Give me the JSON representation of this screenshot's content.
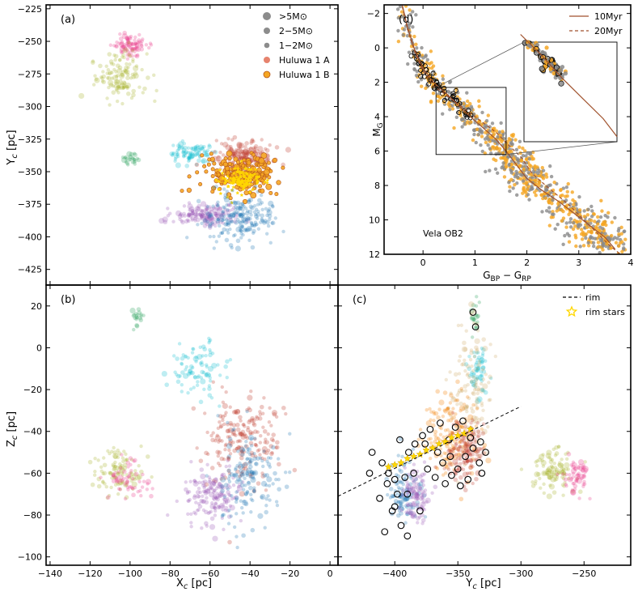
{
  "chart_data": [
    {
      "id": "a",
      "type": "scatter",
      "panel_label": "(a)",
      "xlabel": "",
      "ylabel": "Y_c [pc]",
      "xlim": [
        -142,
        4
      ],
      "ylim": [
        -437,
        -222
      ],
      "xticks": [
        -140,
        -120,
        -100,
        -80,
        -60,
        -40,
        -20,
        0
      ],
      "yticks": [
        -225,
        -250,
        -275,
        -300,
        -325,
        -350,
        -375,
        -400,
        -425
      ],
      "yticklabels": [
        "−225",
        "−250",
        "−275",
        "−300",
        "−325",
        "−350",
        "−375",
        "−400",
        "−425"
      ],
      "legend": {
        "position": "top-right",
        "entries": [
          {
            "label": ">5M⊙",
            "color": "#8c8c8c",
            "size": "large"
          },
          {
            "label": "2−5M⊙",
            "color": "#8c8c8c",
            "size": "medium"
          },
          {
            "label": "1−2M⊙",
            "color": "#8c8c8c",
            "size": "small"
          },
          {
            "label": "Huluwa 1 A",
            "color": "#e6836e",
            "size": "medium"
          },
          {
            "label": "Huluwa 1 B",
            "color": "#f5a623",
            "size": "medium"
          }
        ]
      },
      "groups": [
        {
          "name": "pink",
          "color": "#e83e8c",
          "center": [
            -100,
            -253
          ],
          "spread": [
            4,
            4
          ],
          "n": 90
        },
        {
          "name": "olive",
          "color": "#aab52d",
          "center": [
            -104,
            -278
          ],
          "spread": [
            6,
            9
          ],
          "n": 120
        },
        {
          "name": "green",
          "color": "#2ca25f",
          "center": [
            -99,
            -341
          ],
          "spread": [
            2.5,
            2
          ],
          "n": 25
        },
        {
          "name": "cyan",
          "color": "#17becf",
          "center": [
            -70,
            -336
          ],
          "spread": [
            6,
            4
          ],
          "n": 90
        },
        {
          "name": "red",
          "color": "#c0392b",
          "center": [
            -43,
            -338
          ],
          "spread": [
            7,
            6
          ],
          "n": 180
        },
        {
          "name": "huluwa1b",
          "color": "#f5a623",
          "center": [
            -45,
            -352
          ],
          "spread": [
            9,
            7
          ],
          "n": 220
        },
        {
          "name": "star",
          "color": "#ffd700",
          "center": [
            -45,
            -355
          ],
          "spread": [
            5,
            5
          ],
          "n": 110
        },
        {
          "name": "purple",
          "color": "#9b59b6",
          "center": [
            -63,
            -383
          ],
          "spread": [
            8,
            4
          ],
          "n": 150
        },
        {
          "name": "blue",
          "color": "#1f77b4",
          "center": [
            -45,
            -387
          ],
          "spread": [
            8,
            9
          ],
          "n": 200
        }
      ]
    },
    {
      "id": "d",
      "type": "scatter",
      "panel_label": "(d)",
      "xlabel": "G_BP − G_RP",
      "ylabel": "M_G",
      "annotation": "Vela OB2",
      "xlim": [
        -0.75,
        4
      ],
      "ylim": [
        12,
        -2.5
      ],
      "xticks": [
        0,
        1,
        2,
        3,
        4
      ],
      "yticks": [
        -2,
        0,
        2,
        4,
        6,
        8,
        10,
        12
      ],
      "yticklabels": [
        "−2",
        "0",
        "2",
        "4",
        "6",
        "8",
        "10",
        "12"
      ],
      "legend": {
        "position": "top-right",
        "entries": [
          {
            "label": "10Myr",
            "color": "#a0522d",
            "style": "solid"
          },
          {
            "label": "20Myr",
            "color": "#a0522d",
            "style": "dashed"
          }
        ]
      },
      "isochrone_10myr": [
        [
          -0.4,
          -2.5
        ],
        [
          -0.3,
          -1.2
        ],
        [
          -0.15,
          0.2
        ],
        [
          0,
          1.2
        ],
        [
          0.2,
          2.0
        ],
        [
          0.5,
          2.8
        ],
        [
          0.8,
          3.7
        ],
        [
          1.1,
          4.5
        ],
        [
          1.4,
          5.3
        ],
        [
          1.6,
          6.0
        ],
        [
          1.8,
          6.8
        ],
        [
          2.0,
          7.6
        ],
        [
          2.3,
          8.3
        ],
        [
          2.6,
          8.9
        ],
        [
          2.9,
          9.6
        ],
        [
          3.2,
          10.3
        ],
        [
          3.5,
          11.0
        ],
        [
          3.7,
          11.7
        ]
      ],
      "isochrone_20myr": [
        [
          -0.4,
          -2.4
        ],
        [
          -0.3,
          -1.1
        ],
        [
          -0.15,
          0.3
        ],
        [
          0,
          1.35
        ],
        [
          0.2,
          2.2
        ],
        [
          0.6,
          3.1
        ],
        [
          1.0,
          4.0
        ],
        [
          1.4,
          4.9
        ],
        [
          1.7,
          5.8
        ],
        [
          1.9,
          6.4
        ],
        [
          2.1,
          7.3
        ],
        [
          2.4,
          8.1
        ],
        [
          2.8,
          9.1
        ],
        [
          3.2,
          10.3
        ],
        [
          3.6,
          11.5
        ],
        [
          3.8,
          12.0
        ]
      ],
      "inset_box": {
        "x": [
          0.25,
          1.6
        ],
        "y": [
          2.3,
          6.2
        ]
      }
    },
    {
      "id": "b",
      "type": "scatter",
      "panel_label": "(b)",
      "xlabel": "X_c [pc]",
      "ylabel": "Z_c [pc]",
      "xlim": [
        -142,
        4
      ],
      "ylim": [
        -104,
        30
      ],
      "xticks": [
        -140,
        -120,
        -100,
        -80,
        -60,
        -40,
        -20,
        0
      ],
      "xticklabels": [
        "−140",
        "−120",
        "−100",
        "−80",
        "−60",
        "−40",
        "−20",
        "0"
      ],
      "yticks": [
        20,
        0,
        -20,
        -40,
        -60,
        -80,
        -100
      ],
      "yticklabels": [
        "20",
        "0",
        "−20",
        "−40",
        "−60",
        "−80",
        "−100"
      ],
      "groups": [
        {
          "name": "green",
          "color": "#2ca25f",
          "center": [
            -97,
            14
          ],
          "spread": [
            2,
            2.5
          ],
          "n": 20
        },
        {
          "name": "cyan",
          "color": "#17becf",
          "center": [
            -67,
            -10
          ],
          "spread": [
            7,
            7
          ],
          "n": 90
        },
        {
          "name": "olive",
          "color": "#aab52d",
          "center": [
            -106,
            -59
          ],
          "spread": [
            6,
            5
          ],
          "n": 100
        },
        {
          "name": "pink",
          "color": "#e83e8c",
          "center": [
            -100,
            -63
          ],
          "spread": [
            5,
            5
          ],
          "n": 60
        },
        {
          "name": "red",
          "color": "#c0392b",
          "center": [
            -45,
            -45
          ],
          "spread": [
            9,
            10
          ],
          "n": 200
        },
        {
          "name": "purple",
          "color": "#9b59b6",
          "center": [
            -58,
            -71
          ],
          "spread": [
            7,
            6
          ],
          "n": 160
        },
        {
          "name": "blue",
          "color": "#1f77b4",
          "center": [
            -40,
            -62
          ],
          "spread": [
            8,
            12
          ],
          "n": 160
        }
      ]
    },
    {
      "id": "c",
      "type": "scatter",
      "panel_label": "(c)",
      "xlabel": "Y_c [pc]",
      "ylabel": "",
      "xlim": [
        -445,
        -213
      ],
      "ylim": [
        -104,
        30
      ],
      "xticks": [
        -400,
        -350,
        -300,
        -250
      ],
      "xticklabels": [
        "−400",
        "−350",
        "−300",
        "−250"
      ],
      "legend": {
        "position": "top-right",
        "entries": [
          {
            "label": "rim",
            "color": "#000000",
            "style": "dashed"
          },
          {
            "label": "rim stars",
            "color": "#ffd700",
            "style": "star"
          }
        ]
      },
      "rim_line": [
        [
          -445,
          -71
        ],
        [
          -300,
          -28
        ]
      ],
      "groups": [
        {
          "name": "green",
          "color": "#2ca25f",
          "center": [
            -337,
            13
          ],
          "spread": [
            2,
            3
          ],
          "n": 20
        },
        {
          "name": "cyan",
          "color": "#17becf",
          "center": [
            -335,
            -12
          ],
          "spread": [
            4,
            6
          ],
          "n": 60
        },
        {
          "name": "tan",
          "color": "#cfae6a",
          "center": [
            -340,
            -20
          ],
          "spread": [
            8,
            18
          ],
          "n": 130
        },
        {
          "name": "orange",
          "color": "#f57c00",
          "center": [
            -355,
            -42
          ],
          "spread": [
            12,
            10
          ],
          "n": 150
        },
        {
          "name": "red",
          "color": "#c0392b",
          "center": [
            -345,
            -50
          ],
          "spread": [
            8,
            8
          ],
          "n": 140
        },
        {
          "name": "blue",
          "color": "#1f77b4",
          "center": [
            -393,
            -70
          ],
          "spread": [
            6,
            8
          ],
          "n": 100
        },
        {
          "name": "purple",
          "color": "#9b59b6",
          "center": [
            -383,
            -71
          ],
          "spread": [
            5,
            6
          ],
          "n": 100
        },
        {
          "name": "olive",
          "color": "#aab52d",
          "center": [
            -274,
            -59
          ],
          "spread": [
            9,
            5
          ],
          "n": 100
        },
        {
          "name": "pink",
          "color": "#e83e8c",
          "center": [
            -256,
            -62
          ],
          "spread": [
            5,
            4
          ],
          "n": 60
        }
      ],
      "rim_stars": [
        [
          -405,
          -57
        ],
        [
          -400,
          -56
        ],
        [
          -395,
          -55
        ],
        [
          -390,
          -53
        ],
        [
          -385,
          -52
        ],
        [
          -380,
          -51
        ],
        [
          -375,
          -49
        ],
        [
          -370,
          -48
        ],
        [
          -365,
          -46
        ],
        [
          -360,
          -45
        ],
        [
          -355,
          -43
        ],
        [
          -350,
          -42
        ],
        [
          -345,
          -41
        ],
        [
          -340,
          -39
        ]
      ],
      "open_circles": [
        [
          -418,
          -50
        ],
        [
          -410,
          -55
        ],
        [
          -405,
          -60
        ],
        [
          -400,
          -63
        ],
        [
          -398,
          -70
        ],
        [
          -402,
          -78
        ],
        [
          -395,
          -85
        ],
        [
          -390,
          -90
        ],
        [
          -408,
          -88
        ],
        [
          -412,
          -72
        ],
        [
          -396,
          -44
        ],
        [
          -389,
          -50
        ],
        [
          -384,
          -46
        ],
        [
          -378,
          -42
        ],
        [
          -374,
          -58
        ],
        [
          -368,
          -62
        ],
        [
          -362,
          -55
        ],
        [
          -356,
          -52
        ],
        [
          -350,
          -58
        ],
        [
          -344,
          -52
        ],
        [
          -338,
          -48
        ],
        [
          -333,
          -55
        ],
        [
          -328,
          -50
        ],
        [
          -352,
          -38
        ],
        [
          -346,
          -35
        ],
        [
          -340,
          -43
        ],
        [
          -364,
          -36
        ],
        [
          -372,
          -39
        ],
        [
          -336,
          10
        ],
        [
          -338,
          17
        ],
        [
          -390,
          -70
        ],
        [
          -385,
          -60
        ],
        [
          -380,
          -78
        ],
        [
          -400,
          -76
        ],
        [
          -406,
          -65
        ],
        [
          -420,
          -60
        ],
        [
          -392,
          -62
        ],
        [
          -360,
          -65
        ],
        [
          -355,
          -61
        ],
        [
          -348,
          -66
        ],
        [
          -342,
          -63
        ],
        [
          -331,
          -60
        ],
        [
          -332,
          -45
        ],
        [
          -357,
          -44
        ],
        [
          -376,
          -46
        ],
        [
          -366,
          -50
        ]
      ]
    }
  ]
}
